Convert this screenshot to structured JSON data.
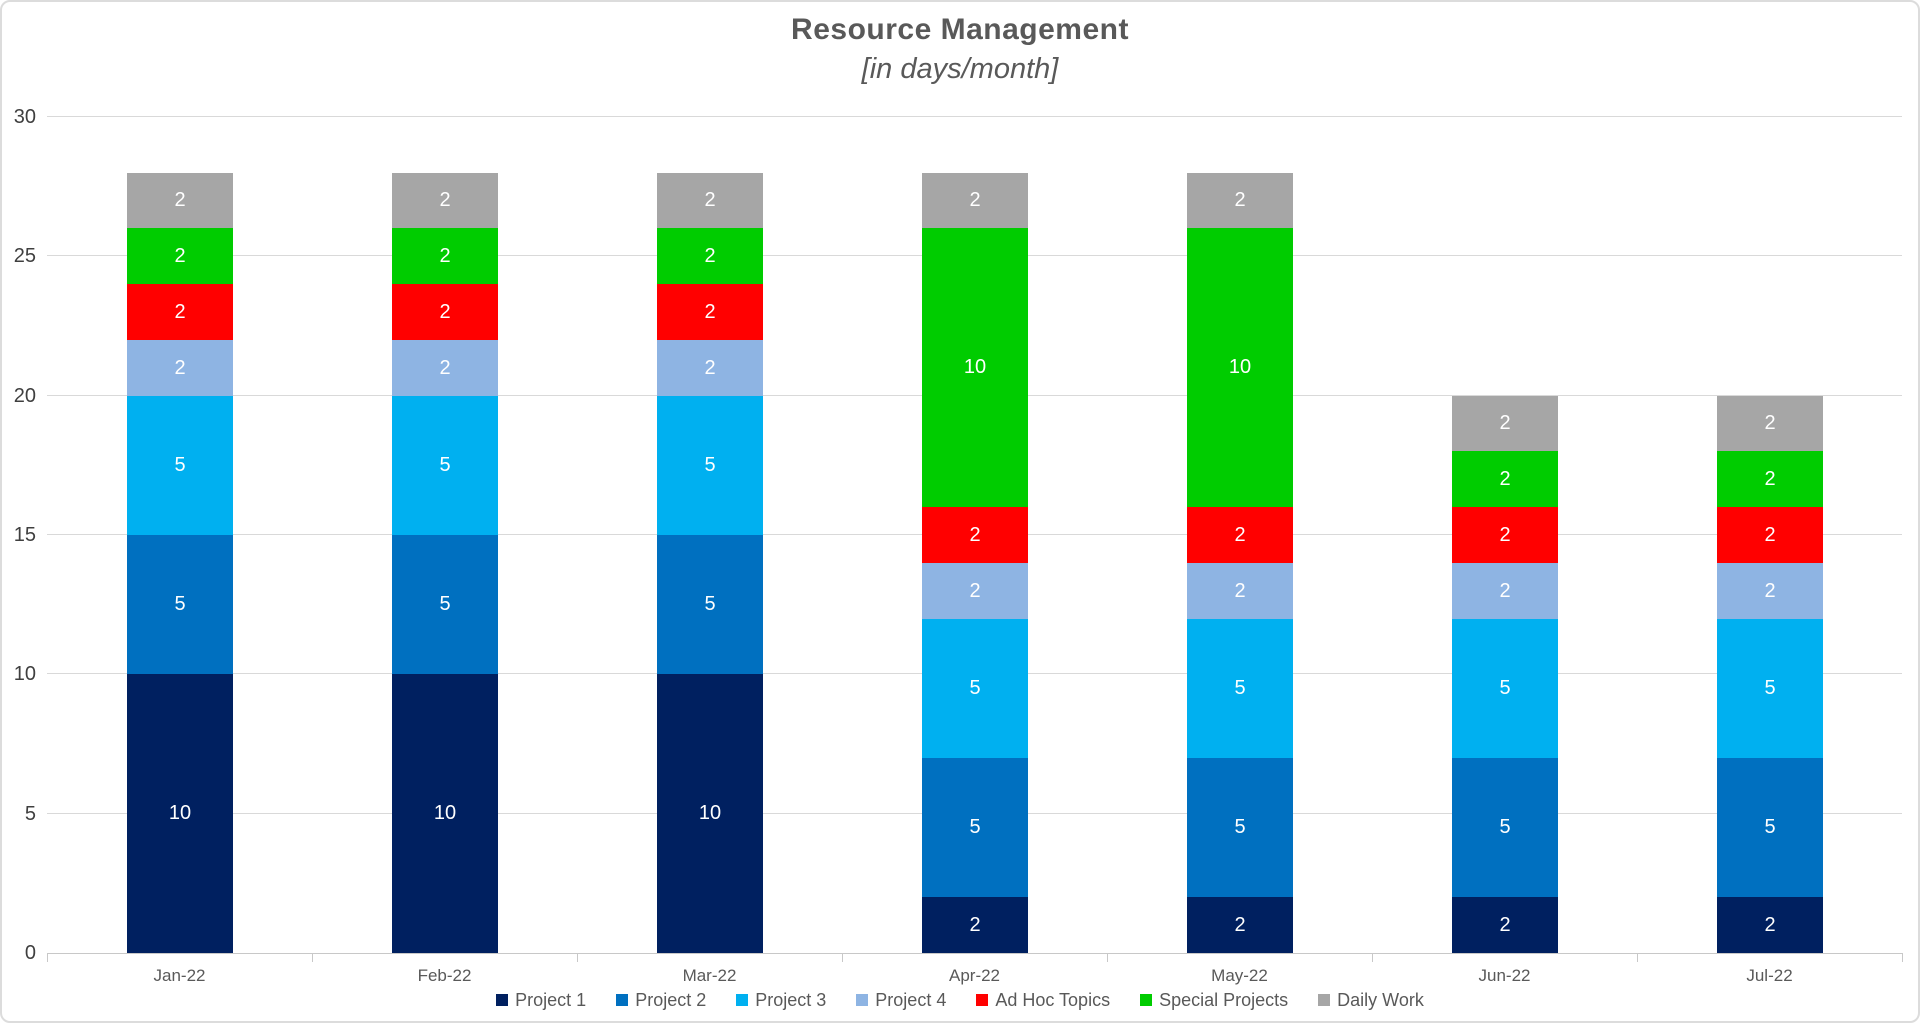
{
  "chart_data": {
    "type": "bar",
    "stacked": true,
    "title": "Resource Management",
    "subtitle": "[in days/month]",
    "categories": [
      "Jan-22",
      "Feb-22",
      "Mar-22",
      "Apr-22",
      "May-22",
      "Jun-22",
      "Jul-22"
    ],
    "series": [
      {
        "name": "Project 1",
        "color": "#002060",
        "values": [
          10,
          10,
          10,
          2,
          2,
          2,
          2
        ]
      },
      {
        "name": "Project 2",
        "color": "#0070C0",
        "values": [
          5,
          5,
          5,
          5,
          5,
          5,
          5
        ]
      },
      {
        "name": "Project 3",
        "color": "#00B0F0",
        "values": [
          5,
          5,
          5,
          5,
          5,
          5,
          5
        ]
      },
      {
        "name": "Project 4",
        "color": "#8EB4E3",
        "values": [
          2,
          2,
          2,
          2,
          2,
          2,
          2
        ]
      },
      {
        "name": "Ad Hoc Topics",
        "color": "#FF0000",
        "values": [
          2,
          2,
          2,
          2,
          2,
          2,
          2
        ]
      },
      {
        "name": "Special Projects",
        "color": "#00CC00",
        "values": [
          2,
          2,
          2,
          10,
          10,
          2,
          2
        ]
      },
      {
        "name": "Daily Work",
        "color": "#A6A6A6",
        "values": [
          2,
          2,
          2,
          2,
          2,
          2,
          2
        ]
      }
    ],
    "totals": [
      28,
      28,
      28,
      28,
      28,
      20,
      20
    ],
    "xlabel": "",
    "ylabel": "",
    "ylim": [
      0,
      30
    ],
    "yticks": [
      0,
      5,
      10,
      15,
      20,
      25,
      30
    ],
    "grid": true,
    "legend_position": "bottom",
    "show_bar_labels": true,
    "colors": {
      "background": "#FFFFFF",
      "frame_border": "#DCDCDC",
      "gridline": "#D9D9D9",
      "axis_line": "#C8C8C8",
      "title_text": "#595959",
      "y_tick_text": "#3F3F3F",
      "category_text": "#595959",
      "legend_text": "#595959",
      "bar_label_text": "#FFFFFF"
    }
  }
}
